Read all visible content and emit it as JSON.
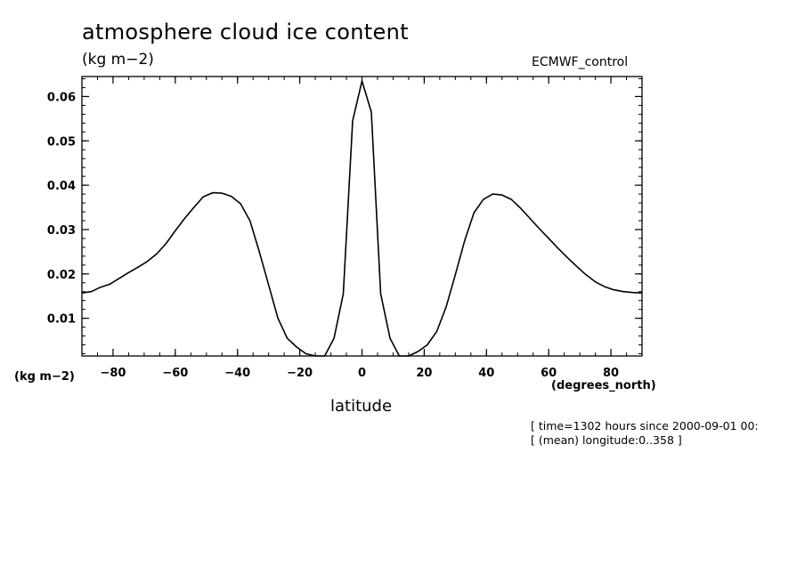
{
  "chart_data": {
    "type": "line",
    "title": "atmosphere cloud ice content",
    "units_top": "(kg m−2)",
    "source_label": "ECMWF_control",
    "units_left": "(kg m−2)",
    "x_units": "(degrees_north)",
    "xlabel": "latitude",
    "notes": [
      "[ time=1302 hours since 2000-09-01 00:",
      "[ (mean) longitude:0..358 ]"
    ],
    "xlim": [
      -90,
      90
    ],
    "ylim": [
      0.0015,
      0.0645
    ],
    "x_ticks": [
      -80,
      -60,
      -40,
      -20,
      0,
      20,
      40,
      60,
      80
    ],
    "x_tick_labels": [
      "−80",
      "−60",
      "−40",
      "−20",
      "0",
      "20",
      "40",
      "60",
      "80"
    ],
    "y_ticks": [
      0.01,
      0.02,
      0.03,
      0.04,
      0.05,
      0.06
    ],
    "y_tick_labels": [
      "0.01",
      "0.02",
      "0.03",
      "0.04",
      "0.05",
      "0.06"
    ],
    "grid": false,
    "line_color": "#000000",
    "series": [
      {
        "x": [
          -90,
          -87,
          -84,
          -81,
          -78,
          -75,
          -72,
          -69,
          -66,
          -63,
          -60,
          -57,
          -54,
          -51,
          -48,
          -45,
          -42,
          -39,
          -36,
          -33,
          -30,
          -27,
          -24,
          -21,
          -18,
          -15,
          -12,
          -9,
          -6,
          -3,
          0,
          3,
          6,
          9,
          12,
          15,
          18,
          21,
          24,
          27,
          30,
          33,
          36,
          39,
          42,
          45,
          48,
          51,
          54,
          57,
          60,
          63,
          66,
          69,
          72,
          75,
          78,
          81,
          84,
          87,
          90
        ],
        "y": [
          0.0157,
          0.016,
          0.017,
          0.0177,
          0.019,
          0.0203,
          0.0215,
          0.0228,
          0.0245,
          0.0268,
          0.0297,
          0.0325,
          0.035,
          0.0374,
          0.0383,
          0.0382,
          0.0375,
          0.0358,
          0.032,
          0.025,
          0.0175,
          0.01,
          0.0055,
          0.0035,
          0.002,
          0.0015,
          0.0015,
          0.0055,
          0.0155,
          0.0545,
          0.0635,
          0.0565,
          0.0155,
          0.0055,
          0.0015,
          0.0015,
          0.0025,
          0.004,
          0.007,
          0.0125,
          0.0198,
          0.0275,
          0.0338,
          0.0368,
          0.038,
          0.0378,
          0.0368,
          0.0348,
          0.0325,
          0.0302,
          0.028,
          0.0258,
          0.0237,
          0.0217,
          0.0198,
          0.0182,
          0.0171,
          0.0164,
          0.016,
          0.0158,
          0.0157
        ]
      }
    ]
  }
}
